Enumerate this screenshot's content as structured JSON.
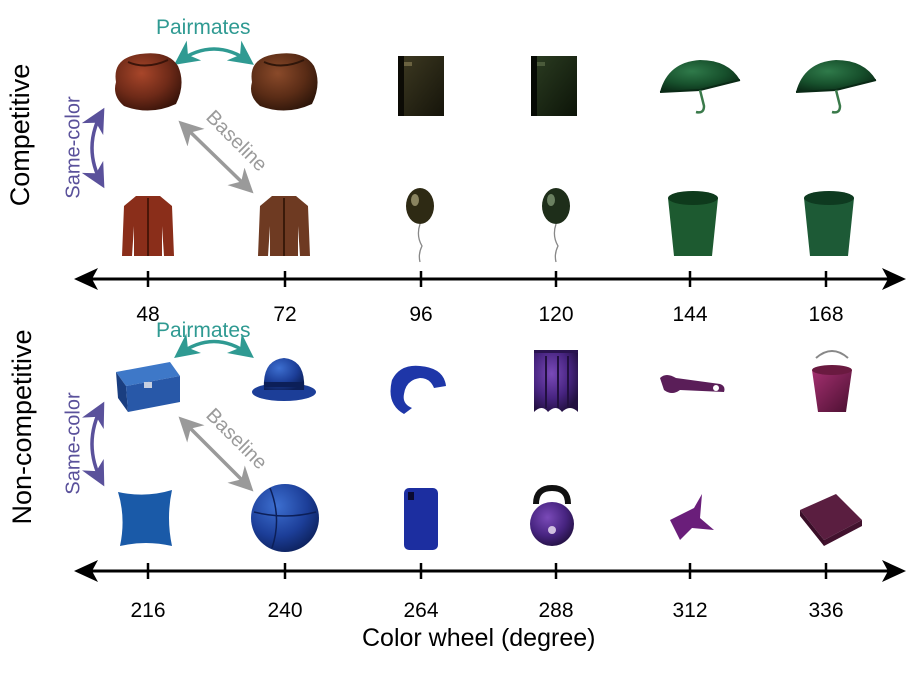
{
  "rows": {
    "competitive_label": "Competitive",
    "noncompetitive_label": "Non-competitive"
  },
  "relations": {
    "pairmates": "Pairmates",
    "same_color": "Same-color",
    "baseline": "Baseline"
  },
  "axis": {
    "top_ticks": [
      "48",
      "72",
      "96",
      "120",
      "144",
      "168"
    ],
    "bottom_ticks": [
      "216",
      "240",
      "264",
      "288",
      "312",
      "336"
    ],
    "title": "Color wheel (degree)"
  },
  "objects": {
    "competitive_top": [
      "bean-bag",
      "bean-bag",
      "binder",
      "binder",
      "umbrella",
      "umbrella"
    ],
    "competitive_bottom": [
      "jacket",
      "jacket",
      "balloon",
      "balloon",
      "bucket",
      "bucket"
    ],
    "noncompetitive_top": [
      "toolbox",
      "bowler-hat",
      "neck-pillow",
      "curtain",
      "wrench",
      "paint-bucket"
    ],
    "noncompetitive_bottom": [
      "cushion",
      "exercise-ball",
      "phone-case",
      "kettlebell",
      "origami-crane",
      "floor-mat"
    ]
  },
  "colors": {
    "pairmates": "#2f9a92",
    "same_color": "#5a519b",
    "baseline": "#9a9a9a",
    "axis": "#000000"
  }
}
